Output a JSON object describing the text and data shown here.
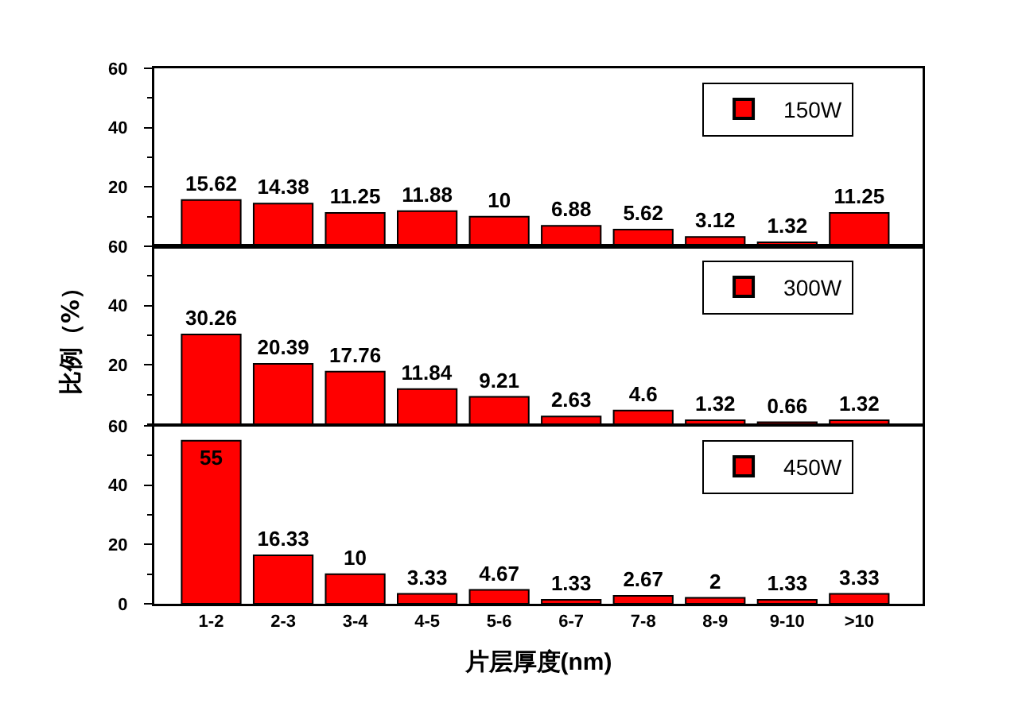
{
  "chart_data": [
    {
      "type": "bar",
      "categories": [
        null,
        null,
        null,
        null,
        null,
        null,
        null,
        null,
        null,
        null
      ],
      "series": [
        {
          "name": "150W",
          "color": "#ff0000",
          "values": [
            15.62,
            14.38,
            11.25,
            11.88,
            10,
            6.88,
            5.62,
            3.12,
            1.32,
            11.25
          ]
        }
      ],
      "ylim": [
        0,
        60
      ],
      "yticks": [
        {
          "value": 0,
          "label": null
        },
        {
          "value": 10,
          "label": null
        },
        20,
        {
          "value": 30,
          "label": null
        },
        40,
        {
          "value": 50,
          "label": null
        },
        60
      ],
      "data_labels": true,
      "legend": "top right",
      "tick_labels": "y"
    },
    {
      "type": "bar",
      "ylabel": "比例（%）",
      "categories": [
        null,
        null,
        null,
        null,
        null,
        null,
        null,
        null,
        null,
        null
      ],
      "series": [
        {
          "name": "300W",
          "color": "#ff0000",
          "values": [
            30.26,
            20.39,
            17.76,
            11.84,
            9.21,
            2.63,
            4.6,
            1.32,
            0.66,
            1.32
          ]
        }
      ],
      "ylim": [
        0,
        60
      ],
      "yticks": [
        {
          "value": 0,
          "label": null
        },
        {
          "value": 10,
          "label": null
        },
        20,
        {
          "value": 30,
          "label": null
        },
        40,
        {
          "value": 50,
          "label": null
        },
        60
      ],
      "data_labels": true,
      "legend": "top right",
      "tick_labels": "y"
    },
    {
      "type": "bar",
      "xlabel": "片层厚度(nm)",
      "categories": [
        "1-2",
        "2-3",
        "3-4",
        "4-5",
        "5-6",
        "6-7",
        "7-8",
        "8-9",
        "9-10",
        ">10"
      ],
      "series": [
        {
          "name": "450W",
          "color": "#ff0000",
          "values": [
            55,
            16.33,
            10,
            3.33,
            4.67,
            1.33,
            2.67,
            2,
            1.33,
            3.33
          ]
        }
      ],
      "ylim": [
        0,
        60
      ],
      "yticks": [
        0,
        {
          "value": 10,
          "label": null
        },
        20,
        {
          "value": 30,
          "label": null
        },
        40,
        {
          "value": 50,
          "label": null
        },
        60
      ],
      "data_labels": true,
      "legend": "top right"
    }
  ]
}
